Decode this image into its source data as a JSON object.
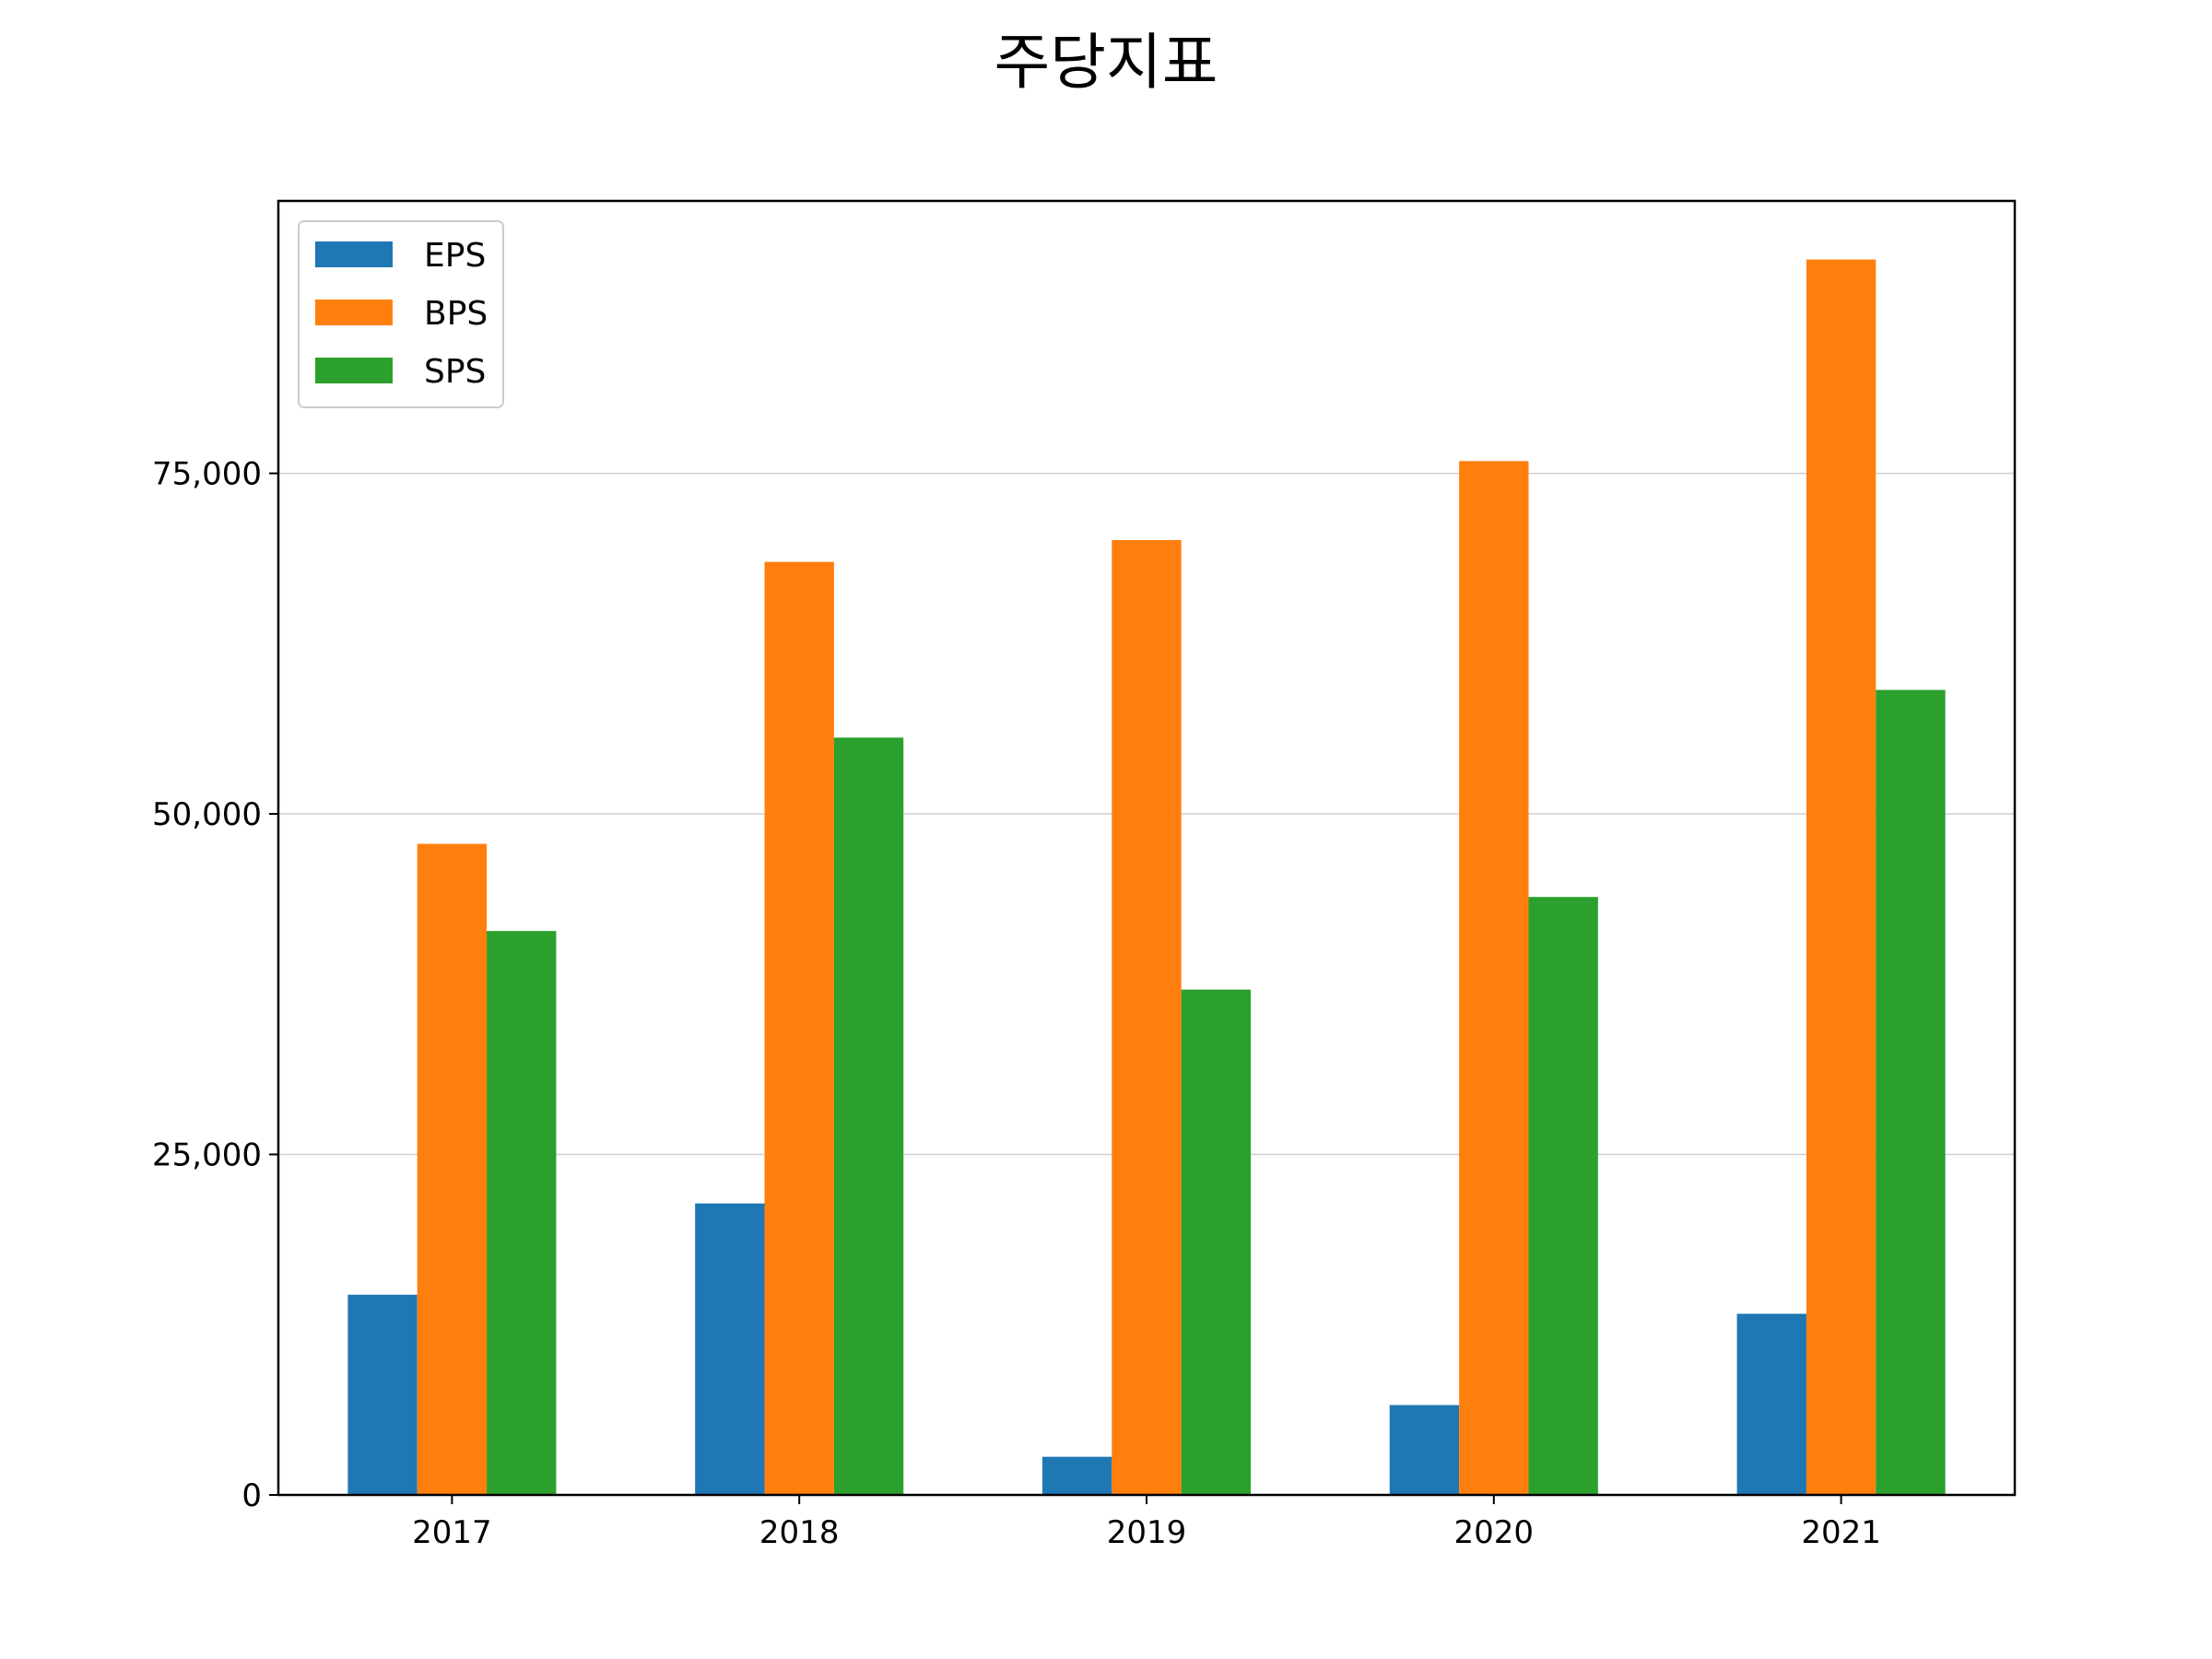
{
  "chart_data": {
    "type": "bar",
    "title": "주당지표",
    "xlabel": "",
    "ylabel": "",
    "categories": [
      "2017",
      "2018",
      "2019",
      "2020",
      "2021"
    ],
    "series": [
      {
        "name": "EPS",
        "values": [
          14700,
          21400,
          2800,
          6600,
          13300
        ],
        "color": "#1f77b4"
      },
      {
        "name": "BPS",
        "values": [
          47800,
          68500,
          70100,
          75900,
          90700
        ],
        "color": "#ff7f0e"
      },
      {
        "name": "SPS",
        "values": [
          41400,
          55600,
          37100,
          43900,
          59100
        ],
        "color": "#2ca02c"
      }
    ],
    "ylim": [
      0,
      95000
    ],
    "yticks": [
      {
        "value": 0,
        "label": "0"
      },
      {
        "value": 25000,
        "label": "25,000"
      },
      {
        "value": 50000,
        "label": "50,000"
      },
      {
        "value": 75000,
        "label": "75,000"
      }
    ],
    "grid": "y",
    "legend": "upper-left"
  }
}
